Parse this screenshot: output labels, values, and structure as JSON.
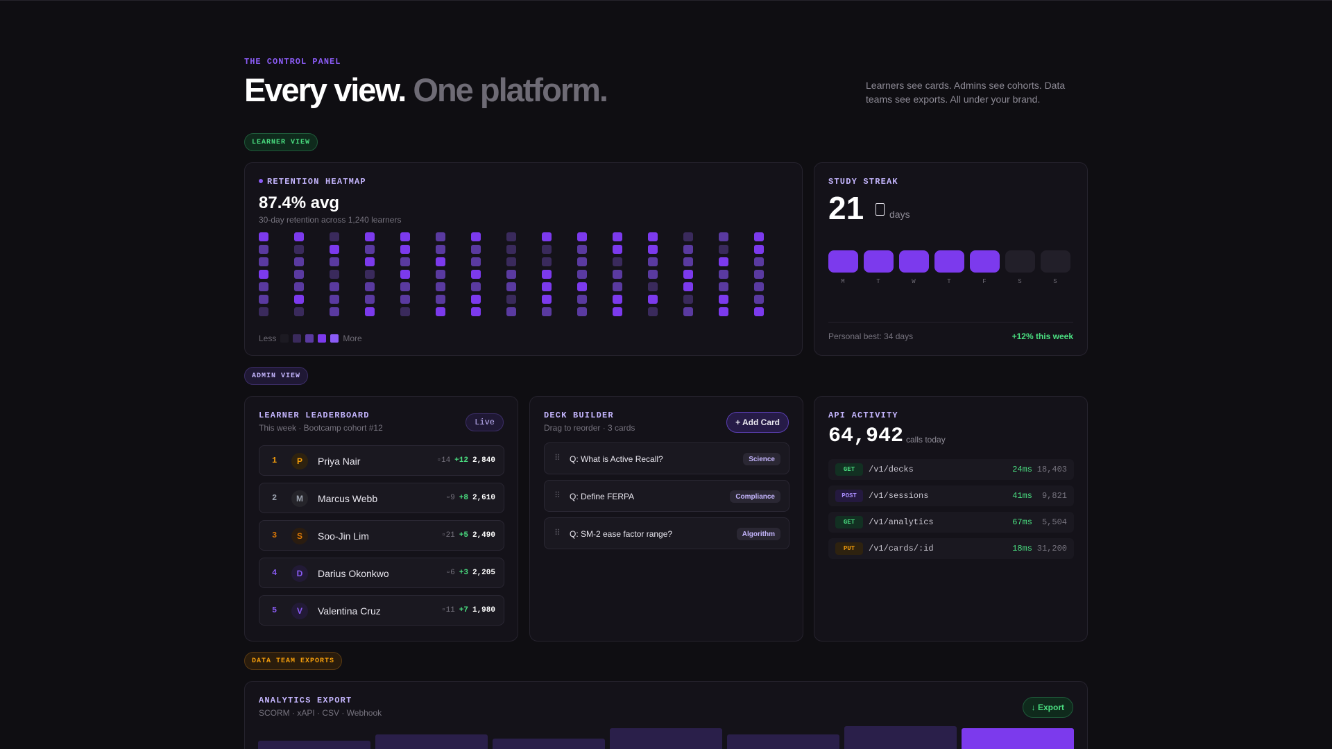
{
  "header": {
    "eyebrow": "THE CONTROL PANEL",
    "title_a": "Every view.",
    "title_b": "One platform.",
    "intro": "Learners see cards. Admins see cohorts. Data teams see exports. All under your brand."
  },
  "sections": {
    "learner": "LEARNER VIEW",
    "admin": "ADMIN VIEW",
    "data": "DATA TEAM EXPORTS"
  },
  "heatmap": {
    "title": "RETENTION HEATMAP",
    "stat": "87.4% avg",
    "subtitle": "30-day retention across 1,240 learners",
    "legend_less": "Less",
    "legend_more": "More",
    "levels": [
      "#1c1a22",
      "#3a2a5c",
      "#5a3aa0",
      "#7c3aed",
      "#8b5cf6"
    ],
    "grid": [
      [
        3,
        2,
        2,
        3,
        2,
        2,
        1
      ],
      [
        3,
        1,
        2,
        2,
        2,
        3,
        1
      ],
      [
        1,
        3,
        2,
        1,
        2,
        2,
        2
      ],
      [
        3,
        2,
        3,
        1,
        2,
        2,
        3
      ],
      [
        3,
        3,
        2,
        3,
        2,
        2,
        1
      ],
      [
        2,
        2,
        3,
        2,
        2,
        2,
        3
      ],
      [
        3,
        2,
        2,
        3,
        2,
        3,
        3
      ],
      [
        1,
        1,
        1,
        2,
        2,
        1,
        2
      ],
      [
        3,
        1,
        1,
        3,
        3,
        3,
        2
      ],
      [
        3,
        2,
        2,
        2,
        3,
        2,
        2
      ],
      [
        3,
        3,
        1,
        2,
        2,
        3,
        3
      ],
      [
        3,
        3,
        2,
        2,
        1,
        3,
        1
      ],
      [
        1,
        2,
        2,
        3,
        3,
        1,
        2
      ],
      [
        2,
        1,
        3,
        2,
        2,
        3,
        3
      ],
      [
        3,
        3,
        2,
        2,
        2,
        2,
        3
      ]
    ]
  },
  "streak": {
    "title": "STUDY STREAK",
    "value": "21",
    "unit": "days",
    "days": [
      "M",
      "T",
      "W",
      "T",
      "F",
      "S",
      "S"
    ],
    "active": [
      true,
      true,
      true,
      true,
      true,
      false,
      false
    ],
    "best": "Personal best: 34 days",
    "week": "+12% this week"
  },
  "leaderboard": {
    "title": "LEARNER LEADERBOARD",
    "subtitle": "This week · Bootcamp cohort #12",
    "live": "Live",
    "rows": [
      {
        "rank": "1",
        "initial": "P",
        "name": "Priya Nair",
        "streak": "14",
        "delta": "+12",
        "points": "2,840",
        "color": "#f59e0b",
        "bg": "#2e220f"
      },
      {
        "rank": "2",
        "initial": "M",
        "name": "Marcus Webb",
        "streak": "9",
        "delta": "+8",
        "points": "2,610",
        "color": "#9ca3af",
        "bg": "#25242a"
      },
      {
        "rank": "3",
        "initial": "S",
        "name": "Soo-Jin Lim",
        "streak": "21",
        "delta": "+5",
        "points": "2,490",
        "color": "#d97706",
        "bg": "#2a1c10"
      },
      {
        "rank": "4",
        "initial": "D",
        "name": "Darius Okonkwo",
        "streak": "6",
        "delta": "+3",
        "points": "2,205",
        "color": "#8b5cf6",
        "bg": "#221a36"
      },
      {
        "rank": "5",
        "initial": "V",
        "name": "Valentina Cruz",
        "streak": "11",
        "delta": "+7",
        "points": "1,980",
        "color": "#8b5cf6",
        "bg": "#221a36"
      }
    ]
  },
  "deck": {
    "title": "DECK BUILDER",
    "subtitle": "Drag to reorder · 3 cards",
    "add": "+ Add Card",
    "cards": [
      {
        "q": "Q: What is Active Recall?",
        "tag": "Science"
      },
      {
        "q": "Q: Define FERPA",
        "tag": "Compliance"
      },
      {
        "q": "Q: SM-2 ease factor range?",
        "tag": "Algorithm"
      }
    ]
  },
  "api": {
    "title": "API ACTIVITY",
    "value": "64,942",
    "label": "calls today",
    "rows": [
      {
        "method": "GET",
        "path": "/v1/decks",
        "latency": "24ms",
        "count": "18,403",
        "fg": "#4ade80",
        "bg": "#123022"
      },
      {
        "method": "POST",
        "path": "/v1/sessions",
        "latency": "41ms",
        "count": "9,821",
        "fg": "#a78bfa",
        "bg": "#24193f"
      },
      {
        "method": "GET",
        "path": "/v1/analytics",
        "latency": "67ms",
        "count": "5,504",
        "fg": "#4ade80",
        "bg": "#123022"
      },
      {
        "method": "PUT",
        "path": "/v1/cards/:id",
        "latency": "18ms",
        "count": "31,200",
        "fg": "#f59e0b",
        "bg": "#2e220f"
      }
    ]
  },
  "export": {
    "title": "ANALYTICS EXPORT",
    "subtitle": "SCORM · xAPI · CSV · Webhook",
    "button": "↓ Export",
    "bars": [
      {
        "level": 0.26,
        "color": "#2a1f4a"
      },
      {
        "level": 0.44,
        "color": "#2a1f4a"
      },
      {
        "level": 0.32,
        "color": "#2a1f4a"
      },
      {
        "level": 0.62,
        "color": "#2a1f4a"
      },
      {
        "level": 0.44,
        "color": "#2a1f4a"
      },
      {
        "level": 0.68,
        "color": "#2a1f4a"
      },
      {
        "level": 0.62,
        "color": "#7c3aed"
      }
    ]
  }
}
